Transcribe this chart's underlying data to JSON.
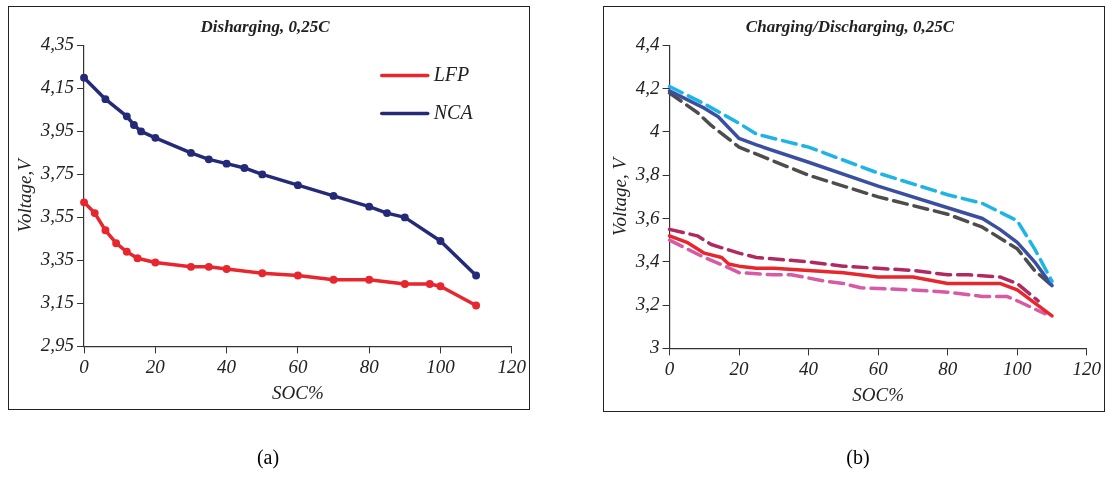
{
  "chart_data": [
    {
      "type": "line",
      "title": "Disharging, 0,25C",
      "xlabel": "SOC%",
      "ylabel": "Voltage,V",
      "annotations": [
        "(a)"
      ],
      "xlim": [
        0,
        120
      ],
      "xticks": [
        0,
        20,
        40,
        60,
        80,
        100,
        120
      ],
      "ylim": [
        2.95,
        4.35
      ],
      "yticks": [
        {
          "value": 2.95,
          "label": "2,95"
        },
        {
          "value": 3.15,
          "label": "3,15"
        },
        {
          "value": 3.35,
          "label": "3,35"
        },
        {
          "value": 3.55,
          "label": "3,55"
        },
        {
          "value": 3.75,
          "label": "3,75"
        },
        {
          "value": 3.95,
          "label": "3,95"
        },
        {
          "value": 4.15,
          "label": "4,15"
        },
        {
          "value": 4.35,
          "label": "4,35"
        }
      ],
      "grid": false,
      "legend": "top right",
      "marker": "circle",
      "line_style": "solid",
      "series": [
        {
          "name": "LFP",
          "color": "#e8262d",
          "x": [
            0,
            3,
            6,
            9,
            12,
            15,
            20,
            30,
            35,
            40,
            50,
            60,
            70,
            80,
            90,
            97,
            100,
            110
          ],
          "values": [
            3.62,
            3.57,
            3.49,
            3.43,
            3.39,
            3.36,
            3.34,
            3.32,
            3.32,
            3.31,
            3.29,
            3.28,
            3.26,
            3.26,
            3.24,
            3.24,
            3.23,
            3.14
          ]
        },
        {
          "name": "NCA",
          "color": "#242a78",
          "x": [
            0,
            6,
            12,
            14,
            16,
            20,
            30,
            35,
            40,
            45,
            50,
            60,
            70,
            80,
            85,
            90,
            100,
            110
          ],
          "values": [
            4.2,
            4.1,
            4.02,
            3.98,
            3.95,
            3.92,
            3.85,
            3.82,
            3.8,
            3.78,
            3.75,
            3.7,
            3.65,
            3.6,
            3.57,
            3.55,
            3.44,
            3.28
          ]
        }
      ]
    },
    {
      "type": "line",
      "title": "Charging/Discharging, 0,25C",
      "xlabel": "SOC%",
      "ylabel": "Voltage, V",
      "annotations": [
        "(b)"
      ],
      "xlim": [
        0,
        120
      ],
      "xticks": [
        0,
        20,
        40,
        60,
        80,
        100,
        120
      ],
      "ylim": [
        3,
        4.4
      ],
      "yticks": [
        3,
        {
          "value": 3.2,
          "label": "3,2"
        },
        {
          "value": 3.4,
          "label": "3,4"
        },
        {
          "value": 3.6,
          "label": "3,6"
        },
        {
          "value": 3.8,
          "label": "3,8"
        },
        4,
        {
          "value": 4.2,
          "label": "4,2"
        },
        {
          "value": 4.4,
          "label": "4,4"
        }
      ],
      "grid": false,
      "legend": false,
      "marker": "none",
      "series": [
        {
          "color": "#1fb4e6",
          "line_style": "dashed",
          "x": [
            0,
            10,
            20,
            25,
            40,
            60,
            80,
            90,
            100,
            105,
            110
          ],
          "values": [
            4.21,
            4.13,
            4.04,
            3.99,
            3.93,
            3.81,
            3.71,
            3.67,
            3.59,
            3.46,
            3.31
          ]
        },
        {
          "color": "#3a4fa0",
          "line_style": "solid",
          "x": [
            0,
            10,
            14,
            20,
            25,
            40,
            60,
            80,
            90,
            95,
            100,
            105,
            110
          ],
          "values": [
            4.19,
            4.11,
            4.07,
            3.97,
            3.94,
            3.86,
            3.75,
            3.65,
            3.6,
            3.55,
            3.49,
            3.4,
            3.29
          ]
        },
        {
          "color": "#4d4d4d",
          "line_style": "dashed",
          "x": [
            0,
            8,
            12,
            20,
            40,
            60,
            80,
            90,
            100,
            105,
            110
          ],
          "values": [
            4.18,
            4.09,
            4.03,
            3.93,
            3.8,
            3.7,
            3.62,
            3.56,
            3.46,
            3.36,
            3.29
          ]
        },
        {
          "color": "#b02a60",
          "line_style": "dashed",
          "x": [
            0,
            8,
            12,
            20,
            25,
            40,
            50,
            70,
            80,
            86,
            95,
            100,
            106
          ],
          "values": [
            3.55,
            3.52,
            3.48,
            3.44,
            3.42,
            3.4,
            3.38,
            3.36,
            3.34,
            3.34,
            3.33,
            3.3,
            3.22
          ]
        },
        {
          "color": "#e8262d",
          "line_style": "solid",
          "x": [
            0,
            5,
            10,
            15,
            17,
            20,
            25,
            30,
            40,
            50,
            60,
            70,
            80,
            90,
            95,
            100,
            105,
            110
          ],
          "values": [
            3.52,
            3.49,
            3.44,
            3.42,
            3.39,
            3.38,
            3.37,
            3.37,
            3.36,
            3.35,
            3.33,
            3.33,
            3.3,
            3.3,
            3.3,
            3.27,
            3.21,
            3.15
          ]
        },
        {
          "color": "#d85aa5",
          "line_style": "dashed",
          "x": [
            0,
            5,
            10,
            16,
            20,
            30,
            35,
            45,
            50,
            55,
            70,
            80,
            90,
            97,
            100,
            108
          ],
          "values": [
            3.5,
            3.46,
            3.42,
            3.38,
            3.35,
            3.34,
            3.34,
            3.31,
            3.3,
            3.28,
            3.27,
            3.26,
            3.24,
            3.24,
            3.22,
            3.16
          ]
        }
      ]
    }
  ]
}
